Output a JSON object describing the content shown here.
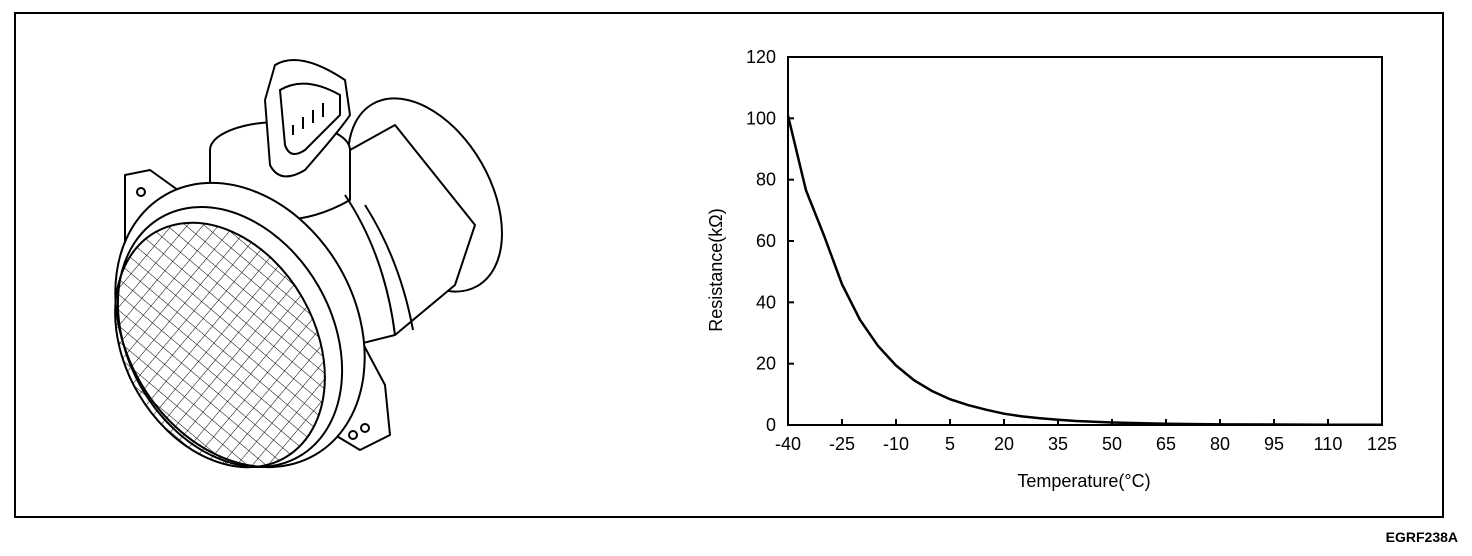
{
  "figure_code": "EGRF238A",
  "illustration": {
    "subject": "mass-air-flow-sensor",
    "icon": "maf-sensor-icon"
  },
  "chart_data": {
    "type": "line",
    "xlabel": "Temperature(°C)",
    "ylabel": "Resistance(kΩ)",
    "xlim": [
      -40,
      125
    ],
    "ylim": [
      0,
      120
    ],
    "x_ticks": [
      -40,
      -25,
      -10,
      5,
      20,
      35,
      50,
      65,
      80,
      95,
      110,
      125
    ],
    "y_ticks": [
      0,
      20,
      40,
      60,
      80,
      100,
      120
    ],
    "grid": false,
    "series": [
      {
        "x": [
          -40,
          -35,
          -30,
          -25,
          -20,
          -15,
          -10,
          -5,
          0,
          5,
          10,
          15,
          20,
          25,
          30,
          35,
          40,
          50,
          65,
          80,
          95,
          110,
          125
        ],
        "values": [
          100.9,
          76.5,
          61.8,
          45.9,
          34.3,
          25.8,
          19.4,
          14.6,
          11.1,
          8.4,
          6.5,
          5.0,
          3.7,
          2.8,
          2.2,
          1.7,
          1.3,
          0.8,
          0.4,
          0.2,
          0.15,
          0.1,
          0.08
        ]
      }
    ]
  }
}
